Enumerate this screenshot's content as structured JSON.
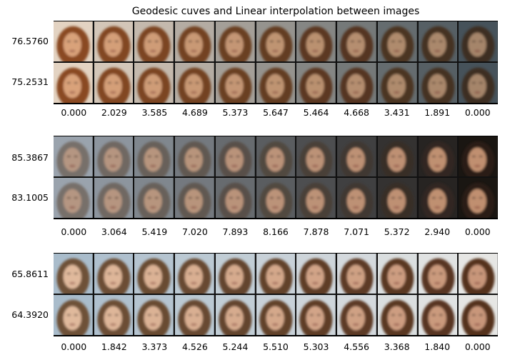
{
  "figure": {
    "title": "Geodesic cuves and Linear interpolation between images",
    "panels": [
      {
        "row_labels": [
          "76.5760",
          "75.2531"
        ],
        "x_ticks": [
          "0.000",
          "2.029",
          "3.585",
          "4.689",
          "5.373",
          "5.647",
          "5.464",
          "4.668",
          "3.431",
          "1.891",
          "0.000"
        ],
        "start": {
          "bg": "#e3d3c2",
          "hair": "#8a4a22",
          "skin": "#d9a27a"
        },
        "end": {
          "bg": "#46525a",
          "hair": "#3d2e22",
          "skin": "#a5856a"
        }
      },
      {
        "row_labels": [
          "85.3867",
          "83.1005"
        ],
        "x_ticks": [
          "0.000",
          "3.064",
          "5.419",
          "7.020",
          "7.893",
          "8.166",
          "7.878",
          "7.071",
          "5.372",
          "2.940",
          "0.000"
        ],
        "start": {
          "bg": "#9aa3ad",
          "hair": "#77706a",
          "skin": "#b59682"
        },
        "end": {
          "bg": "#1a1612",
          "hair": "#2a1f18",
          "skin": "#c08f6f"
        }
      },
      {
        "row_labels": [
          "65.8611",
          "64.3920"
        ],
        "x_ticks": [
          "0.000",
          "1.842",
          "3.373",
          "4.526",
          "5.244",
          "5.510",
          "5.303",
          "4.556",
          "3.368",
          "1.840",
          "0.000"
        ],
        "start": {
          "bg": "#a9bccb",
          "hair": "#6e5138",
          "skin": "#e0b99c"
        },
        "end": {
          "bg": "#e6e6e4",
          "hair": "#55321d",
          "skin": "#c8967a"
        }
      }
    ]
  }
}
